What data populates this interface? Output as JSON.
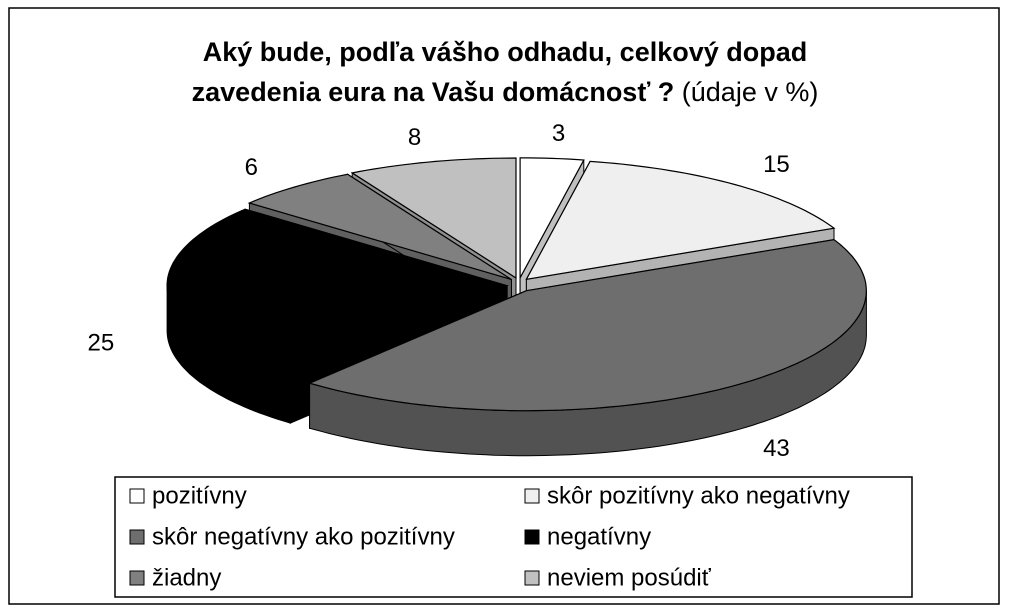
{
  "chart_data": {
    "type": "pie",
    "title": "Aký bude, podľa vášho odhadu, celkový dopad zavedenia eura na Vašu domácnosť ?",
    "subtitle": "(údaje v %)",
    "categories": [
      "pozitívny",
      "skôr pozitívny ako negatívny",
      "skôr negatívny ako pozitívny",
      "negatívny",
      "žiadny",
      "neviem posúdiť"
    ],
    "values": [
      3,
      15,
      43,
      25,
      6,
      8
    ],
    "colors": [
      "#ffffff",
      "#efefef",
      "#6e6e6e",
      "#000000",
      "#808080",
      "#c0c0c0"
    ],
    "legend": "bottom"
  }
}
